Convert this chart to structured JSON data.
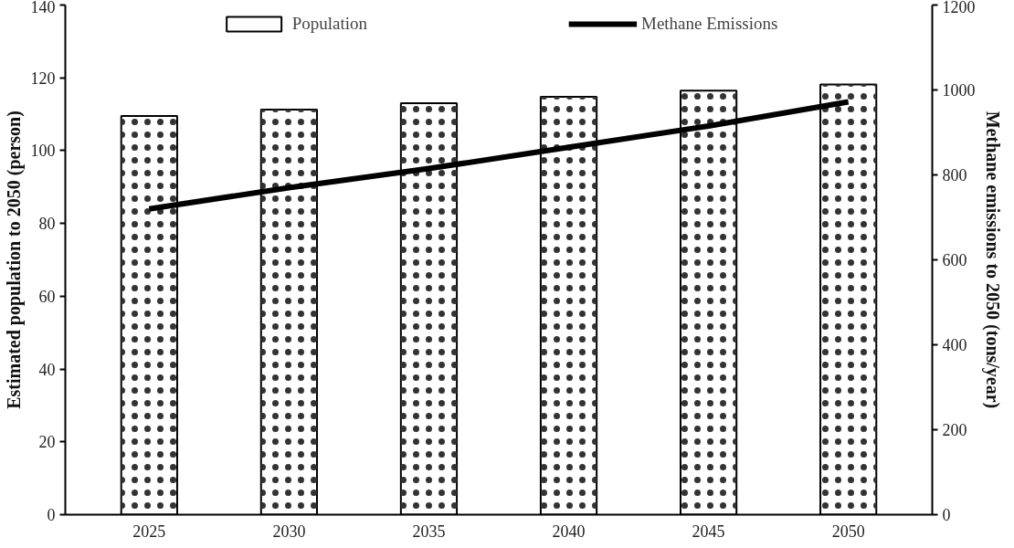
{
  "chart_data": {
    "type": "bar",
    "categories": [
      "2025",
      "2030",
      "2035",
      "2040",
      "2045",
      "2050"
    ],
    "series": [
      {
        "name": "Population",
        "color": "#ffffff",
        "values": [
          109.5,
          111.3,
          113.0,
          114.8,
          116.5,
          118.2
        ]
      },
      {
        "name": "Methane Emissions",
        "type": "line",
        "axis": "y2",
        "color": "#000000",
        "values": [
          720,
          770,
          815,
          865,
          915,
          972
        ]
      }
    ],
    "ylabel": "Estimated population to 2050 (person)",
    "y2label": "Methane emissions to 2050 (tons/year)",
    "ylim": [
      0,
      140
    ],
    "yticks": [
      0,
      20,
      40,
      60,
      80,
      100,
      120,
      140
    ],
    "y2lim": [
      0,
      1200
    ],
    "y2ticks": [
      0,
      200,
      400,
      600,
      800,
      1000,
      1200
    ],
    "grid": false,
    "legend": "top",
    "line_style": "solid",
    "marker": "none"
  }
}
